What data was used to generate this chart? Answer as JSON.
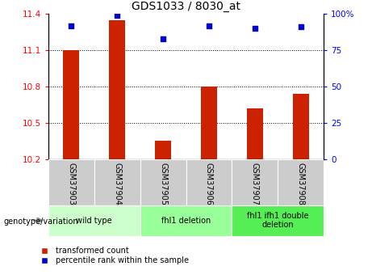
{
  "title": "GDS1033 / 8030_at",
  "samples": [
    "GSM37903",
    "GSM37904",
    "GSM37905",
    "GSM37906",
    "GSM37907",
    "GSM37908"
  ],
  "transformed_count": [
    11.1,
    11.35,
    10.35,
    10.8,
    10.62,
    10.74
  ],
  "percentile_rank": [
    92,
    99,
    83,
    92,
    90,
    91
  ],
  "ylim_left": [
    10.2,
    11.4
  ],
  "ylim_right": [
    0,
    100
  ],
  "yticks_left": [
    10.2,
    10.5,
    10.8,
    11.1,
    11.4
  ],
  "yticks_right": [
    0,
    25,
    50,
    75,
    100
  ],
  "ytick_labels_right": [
    "0",
    "25",
    "50",
    "75",
    "100%"
  ],
  "bar_color": "#cc2200",
  "dot_color": "#0000cc",
  "group_info": [
    {
      "start": 0,
      "end": 1,
      "label": "wild type",
      "color": "#ccffcc"
    },
    {
      "start": 2,
      "end": 3,
      "label": "fhl1 deletion",
      "color": "#99ff99"
    },
    {
      "start": 4,
      "end": 5,
      "label": "fhl1 ifh1 double\ndeletion",
      "color": "#55ee55"
    }
  ],
  "legend_red_label": "transformed count",
  "legend_blue_label": "percentile rank within the sample",
  "genotype_label": "genotype/variation",
  "bar_width": 0.35,
  "baseline": 10.2,
  "sample_bg": "#cccccc"
}
